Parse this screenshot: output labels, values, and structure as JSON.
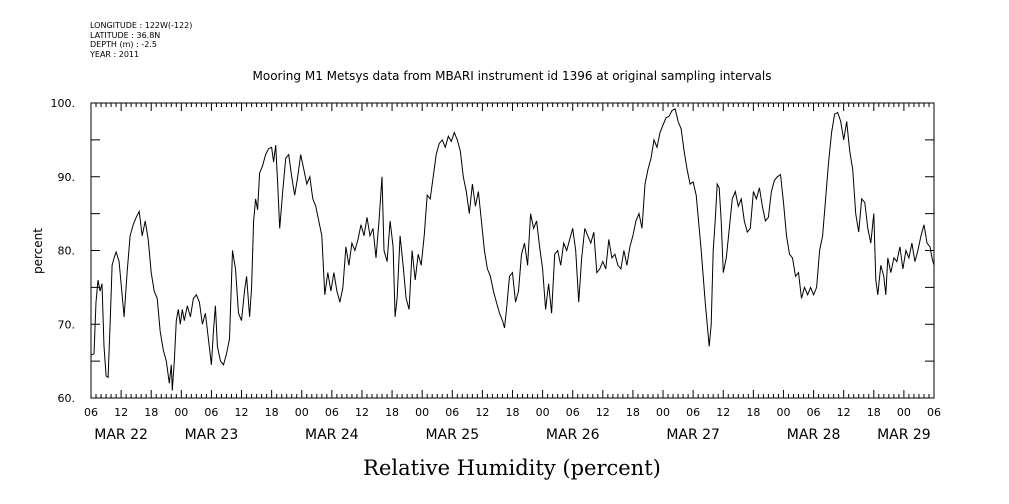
{
  "meta": {
    "longitude": "LONGITUDE : 122W(-122)",
    "latitude": "LATITUDE : 36.8N",
    "depth": "DEPTH (m) : -2.5",
    "year": "YEAR : 2011"
  },
  "chart_data": {
    "type": "line",
    "title": "Mooring M1 Metsys data from MBARI instrument id 1396 at original sampling intervals",
    "xlabel": "Relative Humidity (percent)",
    "ylabel": "percent",
    "ylim": [
      60,
      100
    ],
    "yticks": [
      60,
      70,
      80,
      90,
      100
    ],
    "ytick_labels": [
      "60.",
      "70.",
      "80.",
      "90.",
      "100."
    ],
    "x_unit": "hours since 2011-03-22 00:00",
    "xlim": [
      6,
      174
    ],
    "hour_ticks": [
      6,
      12,
      18,
      0,
      6,
      12,
      18,
      0,
      6,
      12,
      18,
      0,
      6,
      12,
      18,
      0,
      6,
      12,
      18,
      0,
      6,
      12,
      18,
      0,
      6,
      12,
      18,
      0,
      6
    ],
    "date_labels": [
      {
        "label": "MAR 22",
        "hour": 12
      },
      {
        "label": "MAR 23",
        "hour": 30
      },
      {
        "label": "MAR 24",
        "hour": 54
      },
      {
        "label": "MAR 25",
        "hour": 78
      },
      {
        "label": "MAR 26",
        "hour": 102
      },
      {
        "label": "MAR 27",
        "hour": 126
      },
      {
        "label": "MAR 28",
        "hour": 150
      },
      {
        "label": "MAR 29",
        "hour": 168
      }
    ],
    "grid": false,
    "series": [
      {
        "values": [
          [
            6.0,
            65.8
          ],
          [
            6.6,
            66.0
          ],
          [
            7.0,
            73.0
          ],
          [
            7.4,
            76.0
          ],
          [
            7.8,
            74.5
          ],
          [
            8.2,
            75.5
          ],
          [
            8.6,
            67.0
          ],
          [
            9.0,
            63.0
          ],
          [
            9.4,
            62.8
          ],
          [
            9.8,
            70.0
          ],
          [
            10.2,
            78.0
          ],
          [
            10.6,
            79.0
          ],
          [
            11.0,
            79.8
          ],
          [
            11.6,
            78.5
          ],
          [
            12.2,
            74.0
          ],
          [
            12.6,
            71.0
          ],
          [
            13.2,
            77.0
          ],
          [
            13.8,
            82.0
          ],
          [
            14.4,
            83.5
          ],
          [
            15.0,
            84.5
          ],
          [
            15.6,
            85.3
          ],
          [
            16.2,
            82.0
          ],
          [
            16.8,
            84.0
          ],
          [
            17.4,
            81.5
          ],
          [
            18.0,
            77.0
          ],
          [
            18.6,
            74.5
          ],
          [
            19.2,
            73.5
          ],
          [
            19.8,
            69.0
          ],
          [
            20.4,
            66.5
          ],
          [
            21.0,
            65.0
          ],
          [
            21.6,
            62.0
          ],
          [
            22.0,
            64.5
          ],
          [
            22.2,
            61.0
          ],
          [
            22.6,
            65.0
          ],
          [
            23.0,
            70.5
          ],
          [
            23.4,
            72.0
          ],
          [
            23.8,
            70.0
          ],
          [
            24.2,
            72.0
          ],
          [
            24.6,
            70.5
          ],
          [
            25.2,
            72.5
          ],
          [
            25.8,
            71.0
          ],
          [
            26.4,
            73.5
          ],
          [
            27.0,
            74.0
          ],
          [
            27.6,
            73.0
          ],
          [
            28.2,
            70.0
          ],
          [
            28.8,
            71.5
          ],
          [
            29.4,
            68.0
          ],
          [
            30.0,
            64.5
          ],
          [
            30.4,
            69.0
          ],
          [
            30.8,
            72.5
          ],
          [
            31.2,
            67.0
          ],
          [
            31.8,
            65.0
          ],
          [
            32.4,
            64.5
          ],
          [
            33.0,
            66.0
          ],
          [
            33.6,
            68.0
          ],
          [
            34.2,
            80.0
          ],
          [
            34.8,
            77.5
          ],
          [
            35.4,
            71.5
          ],
          [
            36.0,
            70.5
          ],
          [
            36.6,
            74.5
          ],
          [
            37.0,
            76.5
          ],
          [
            37.6,
            71.0
          ],
          [
            38.0,
            75.0
          ],
          [
            38.4,
            84.0
          ],
          [
            38.8,
            87.0
          ],
          [
            39.2,
            85.5
          ],
          [
            39.6,
            90.5
          ],
          [
            40.2,
            91.5
          ],
          [
            40.8,
            93.0
          ],
          [
            41.4,
            93.8
          ],
          [
            42.0,
            94.0
          ],
          [
            42.4,
            92.0
          ],
          [
            42.8,
            94.3
          ],
          [
            43.2,
            89.0
          ],
          [
            43.6,
            83.0
          ],
          [
            44.2,
            88.0
          ],
          [
            44.8,
            92.5
          ],
          [
            45.4,
            93.0
          ],
          [
            46.0,
            90.0
          ],
          [
            46.6,
            87.5
          ],
          [
            47.2,
            90.0
          ],
          [
            47.8,
            93.0
          ],
          [
            48.4,
            91.0
          ],
          [
            49.0,
            89.0
          ],
          [
            49.6,
            90.0
          ],
          [
            50.2,
            87.0
          ],
          [
            50.8,
            86.0
          ],
          [
            51.4,
            84.0
          ],
          [
            52.0,
            82.0
          ],
          [
            52.6,
            74.0
          ],
          [
            53.2,
            77.0
          ],
          [
            53.8,
            74.5
          ],
          [
            54.4,
            77.0
          ],
          [
            55.0,
            74.5
          ],
          [
            55.6,
            73.0
          ],
          [
            56.2,
            75.0
          ],
          [
            56.8,
            80.5
          ],
          [
            57.4,
            78.0
          ],
          [
            58.0,
            81.0
          ],
          [
            58.6,
            80.0
          ],
          [
            59.2,
            81.5
          ],
          [
            59.8,
            83.5
          ],
          [
            60.4,
            82.0
          ],
          [
            61.0,
            84.5
          ],
          [
            61.6,
            82.0
          ],
          [
            62.2,
            83.0
          ],
          [
            62.8,
            79.0
          ],
          [
            63.4,
            84.0
          ],
          [
            64.0,
            90.0
          ],
          [
            64.4,
            80.0
          ],
          [
            65.0,
            78.5
          ],
          [
            65.6,
            84.0
          ],
          [
            66.2,
            80.5
          ],
          [
            66.6,
            71.0
          ],
          [
            67.0,
            73.5
          ],
          [
            67.6,
            82.0
          ],
          [
            68.2,
            78.0
          ],
          [
            68.8,
            73.5
          ],
          [
            69.4,
            72.0
          ],
          [
            70.0,
            80.0
          ],
          [
            70.6,
            76.0
          ],
          [
            71.2,
            79.5
          ],
          [
            71.8,
            78.0
          ],
          [
            72.4,
            82.0
          ],
          [
            73.0,
            87.5
          ],
          [
            73.6,
            87.0
          ],
          [
            74.2,
            90.0
          ],
          [
            74.8,
            93.0
          ],
          [
            75.4,
            94.5
          ],
          [
            76.0,
            95.0
          ],
          [
            76.6,
            94.0
          ],
          [
            77.2,
            95.5
          ],
          [
            77.8,
            94.8
          ],
          [
            78.4,
            96.0
          ],
          [
            79.0,
            95.0
          ],
          [
            79.6,
            93.5
          ],
          [
            80.2,
            90.0
          ],
          [
            80.8,
            88.0
          ],
          [
            81.4,
            85.0
          ],
          [
            82.0,
            89.0
          ],
          [
            82.6,
            86.0
          ],
          [
            83.2,
            88.0
          ],
          [
            83.8,
            84.0
          ],
          [
            84.4,
            80.0
          ],
          [
            85.0,
            77.5
          ],
          [
            85.6,
            76.5
          ],
          [
            86.2,
            74.5
          ],
          [
            86.8,
            73.0
          ],
          [
            87.4,
            71.5
          ],
          [
            88.0,
            70.5
          ],
          [
            88.4,
            69.5
          ],
          [
            88.8,
            72.0
          ],
          [
            89.4,
            76.5
          ],
          [
            90.0,
            77.0
          ],
          [
            90.6,
            73.0
          ],
          [
            91.2,
            74.5
          ],
          [
            91.8,
            79.5
          ],
          [
            92.4,
            81.0
          ],
          [
            93.0,
            78.0
          ],
          [
            93.6,
            85.0
          ],
          [
            94.2,
            83.0
          ],
          [
            94.8,
            84.0
          ],
          [
            95.4,
            80.5
          ],
          [
            96.0,
            77.5
          ],
          [
            96.6,
            72.0
          ],
          [
            97.2,
            75.5
          ],
          [
            97.8,
            71.5
          ],
          [
            98.4,
            79.5
          ],
          [
            99.0,
            80.0
          ],
          [
            99.6,
            78.0
          ],
          [
            100.2,
            81.0
          ],
          [
            100.8,
            80.0
          ],
          [
            101.4,
            81.5
          ],
          [
            102.0,
            83.0
          ],
          [
            102.6,
            80.0
          ],
          [
            103.2,
            73.0
          ],
          [
            103.8,
            79.0
          ],
          [
            104.4,
            83.0
          ],
          [
            105.0,
            82.0
          ],
          [
            105.6,
            81.0
          ],
          [
            106.2,
            82.5
          ],
          [
            106.8,
            77.0
          ],
          [
            107.4,
            77.5
          ],
          [
            108.0,
            78.5
          ],
          [
            108.6,
            77.5
          ],
          [
            109.2,
            81.5
          ],
          [
            109.8,
            79.0
          ],
          [
            110.4,
            79.5
          ],
          [
            111.0,
            78.0
          ],
          [
            111.6,
            77.5
          ],
          [
            112.2,
            80.0
          ],
          [
            112.8,
            78.0
          ],
          [
            113.4,
            80.5
          ],
          [
            114.0,
            82.0
          ],
          [
            114.6,
            84.0
          ],
          [
            115.2,
            85.0
          ],
          [
            115.8,
            83.0
          ],
          [
            116.4,
            89.0
          ],
          [
            117.0,
            91.0
          ],
          [
            117.6,
            92.5
          ],
          [
            118.2,
            95.0
          ],
          [
            118.8,
            94.0
          ],
          [
            119.4,
            96.0
          ],
          [
            120.0,
            97.0
          ],
          [
            120.6,
            98.0
          ],
          [
            121.2,
            98.2
          ],
          [
            121.8,
            99.0
          ],
          [
            122.4,
            99.2
          ],
          [
            123.0,
            97.5
          ],
          [
            123.6,
            96.5
          ],
          [
            124.2,
            93.5
          ],
          [
            124.8,
            91.0
          ],
          [
            125.4,
            89.0
          ],
          [
            126.0,
            89.3
          ],
          [
            126.6,
            87.5
          ],
          [
            127.0,
            84.5
          ],
          [
            127.6,
            80.0
          ],
          [
            128.0,
            76.5
          ],
          [
            128.4,
            73.0
          ],
          [
            128.8,
            70.0
          ],
          [
            129.2,
            67.0
          ],
          [
            129.6,
            70.0
          ],
          [
            130.0,
            80.0
          ],
          [
            130.4,
            84.0
          ],
          [
            130.8,
            89.0
          ],
          [
            131.2,
            88.5
          ],
          [
            131.6,
            84.0
          ],
          [
            132.0,
            77.0
          ],
          [
            132.6,
            79.0
          ],
          [
            133.2,
            83.0
          ],
          [
            133.8,
            87.0
          ],
          [
            134.4,
            88.0
          ],
          [
            135.0,
            86.0
          ],
          [
            135.6,
            87.0
          ],
          [
            136.2,
            84.0
          ],
          [
            136.8,
            82.5
          ],
          [
            137.4,
            83.0
          ],
          [
            138.0,
            88.0
          ],
          [
            138.6,
            87.0
          ],
          [
            139.2,
            88.5
          ],
          [
            139.8,
            86.0
          ],
          [
            140.4,
            84.0
          ],
          [
            141.0,
            84.5
          ],
          [
            141.6,
            88.0
          ],
          [
            142.2,
            89.5
          ],
          [
            142.8,
            90.0
          ],
          [
            143.4,
            90.3
          ],
          [
            144.0,
            86.5
          ],
          [
            144.6,
            82.0
          ],
          [
            145.2,
            79.5
          ],
          [
            145.8,
            79.0
          ],
          [
            146.4,
            76.5
          ],
          [
            147.0,
            77.0
          ],
          [
            147.6,
            73.5
          ],
          [
            148.2,
            75.0
          ],
          [
            148.8,
            74.0
          ],
          [
            149.4,
            75.0
          ],
          [
            150.0,
            74.0
          ],
          [
            150.6,
            75.0
          ],
          [
            151.2,
            80.0
          ],
          [
            151.8,
            82.0
          ],
          [
            152.4,
            87.0
          ],
          [
            153.0,
            92.0
          ],
          [
            153.6,
            96.0
          ],
          [
            154.2,
            98.5
          ],
          [
            154.8,
            98.7
          ],
          [
            155.4,
            97.5
          ],
          [
            156.0,
            95.0
          ],
          [
            156.6,
            97.5
          ],
          [
            157.2,
            93.5
          ],
          [
            157.8,
            91.0
          ],
          [
            158.4,
            85.0
          ],
          [
            159.0,
            82.5
          ],
          [
            159.6,
            87.0
          ],
          [
            160.2,
            86.5
          ],
          [
            160.8,
            83.0
          ],
          [
            161.4,
            81.0
          ],
          [
            162.0,
            85.0
          ],
          [
            162.4,
            76.0
          ],
          [
            162.8,
            74.0
          ],
          [
            163.4,
            78.0
          ],
          [
            164.0,
            76.5
          ],
          [
            164.4,
            74.0
          ],
          [
            164.8,
            79.0
          ],
          [
            165.4,
            77.0
          ],
          [
            166.0,
            79.0
          ],
          [
            166.6,
            78.5
          ],
          [
            167.2,
            80.5
          ],
          [
            167.8,
            77.5
          ],
          [
            168.4,
            80.0
          ],
          [
            169.0,
            79.0
          ],
          [
            169.6,
            81.0
          ],
          [
            170.2,
            78.5
          ],
          [
            170.8,
            80.0
          ],
          [
            171.4,
            82.0
          ],
          [
            172.0,
            83.5
          ],
          [
            172.6,
            81.0
          ],
          [
            173.2,
            80.5
          ],
          [
            173.6,
            79.0
          ],
          [
            174.0,
            78.0
          ]
        ]
      }
    ]
  }
}
